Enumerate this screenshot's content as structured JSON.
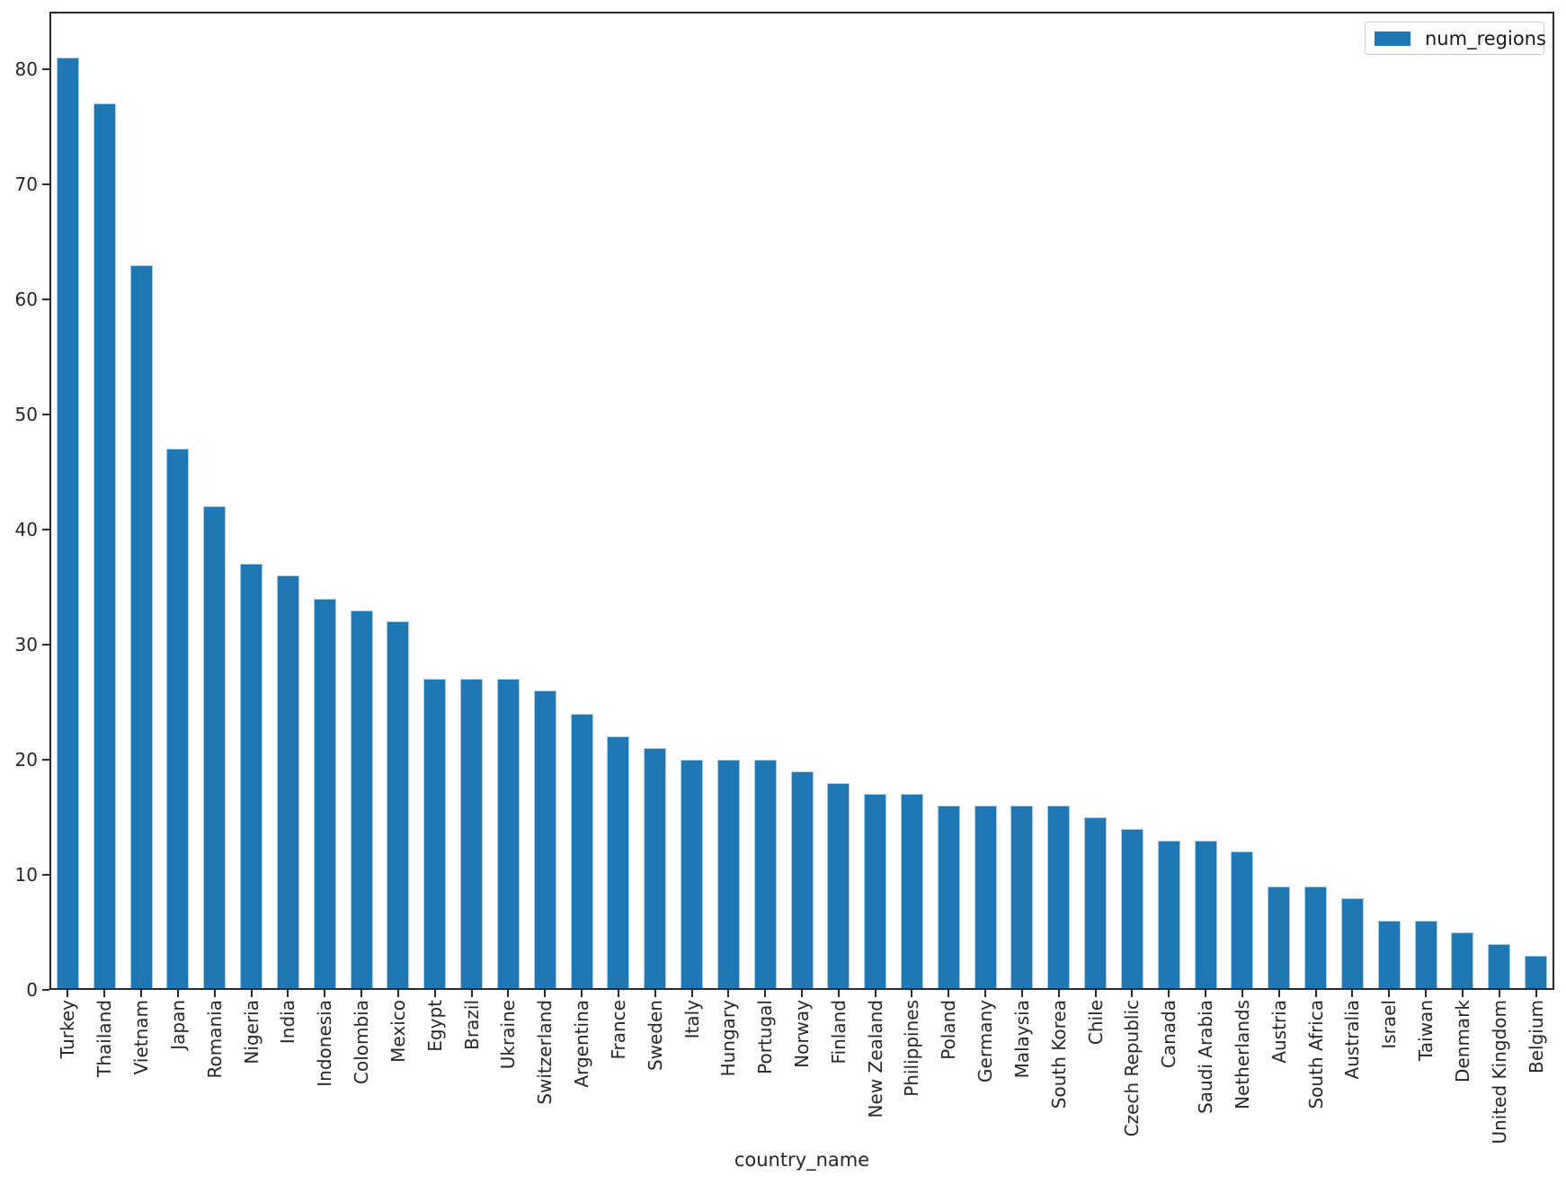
{
  "chart_data": {
    "type": "bar",
    "title": "",
    "xlabel": "country_name",
    "ylabel": "",
    "legend": {
      "label": "num_regions",
      "position": "upper right"
    },
    "bar_color": "#1f77b4",
    "bar_edge_color": "#a9cbe4",
    "axis_color": "#2a2a2a",
    "grid": false,
    "ylim": [
      0,
      85
    ],
    "yticks": [
      0,
      10,
      20,
      30,
      40,
      50,
      60,
      70,
      80
    ],
    "categories": [
      "Turkey",
      "Thailand",
      "Vietnam",
      "Japan",
      "Romania",
      "Nigeria",
      "India",
      "Indonesia",
      "Colombia",
      "Mexico",
      "Egypt",
      "Brazil",
      "Ukraine",
      "Switzerland",
      "Argentina",
      "France",
      "Sweden",
      "Italy",
      "Hungary",
      "Portugal",
      "Norway",
      "Finland",
      "New Zealand",
      "Philippines",
      "Poland",
      "Germany",
      "Malaysia",
      "South Korea",
      "Chile",
      "Czech Republic",
      "Canada",
      "Saudi Arabia",
      "Netherlands",
      "Austria",
      "South Africa",
      "Australia",
      "Israel",
      "Taiwan",
      "Denmark",
      "United Kingdom",
      "Belgium"
    ],
    "series": [
      {
        "name": "num_regions",
        "values": [
          81,
          77,
          63,
          47,
          42,
          37,
          36,
          34,
          33,
          32,
          27,
          27,
          27,
          26,
          24,
          22,
          21,
          20,
          20,
          20,
          19,
          18,
          17,
          17,
          16,
          16,
          16,
          16,
          15,
          14,
          13,
          13,
          12,
          9,
          9,
          8,
          6,
          6,
          5,
          4,
          3
        ]
      }
    ]
  }
}
